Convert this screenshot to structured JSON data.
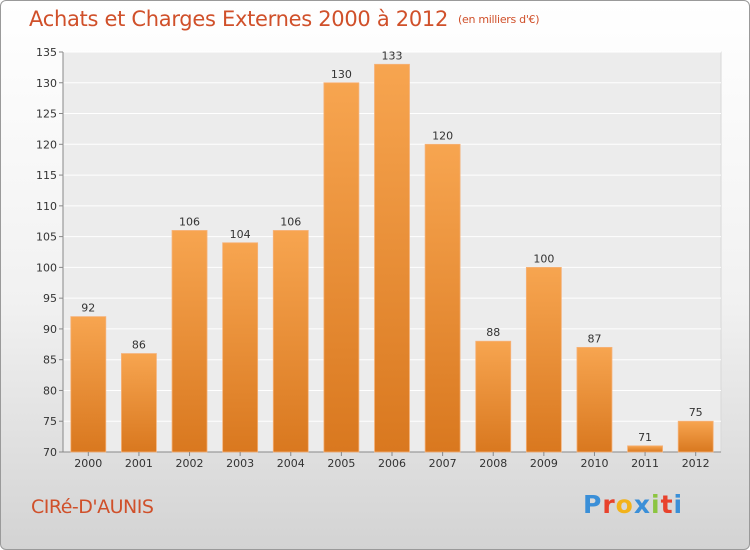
{
  "title": "Achats et Charges Externes 2000 à 2012",
  "unit": "(en milliers d'€)",
  "commune": "CIRé-D'AUNIS",
  "brand": {
    "letters": [
      "P",
      "r",
      "o",
      "x",
      "i",
      "t",
      "i"
    ],
    "colors": [
      "#3a8fd8",
      "#e8422c",
      "#f2b21a",
      "#3a8fd8",
      "#8cc540",
      "#e8422c",
      "#3a8fd8"
    ]
  },
  "colors": {
    "bar_light": "#f7a550",
    "bar_dark": "#d9781f",
    "title": "#d0502a"
  },
  "chart_data": {
    "type": "bar",
    "title": "Achats et Charges Externes 2000 à 2012",
    "categories": [
      "2000",
      "2001",
      "2002",
      "2003",
      "2004",
      "2005",
      "2006",
      "2007",
      "2008",
      "2009",
      "2010",
      "2011",
      "2012"
    ],
    "values": [
      92,
      86,
      106,
      104,
      106,
      130,
      133,
      120,
      88,
      100,
      87,
      71,
      75
    ],
    "ylim": [
      70,
      135
    ],
    "yticks": [
      70,
      75,
      80,
      85,
      90,
      95,
      100,
      105,
      110,
      115,
      120,
      125,
      130,
      135
    ],
    "grid": true,
    "xlabel": "",
    "ylabel": ""
  }
}
